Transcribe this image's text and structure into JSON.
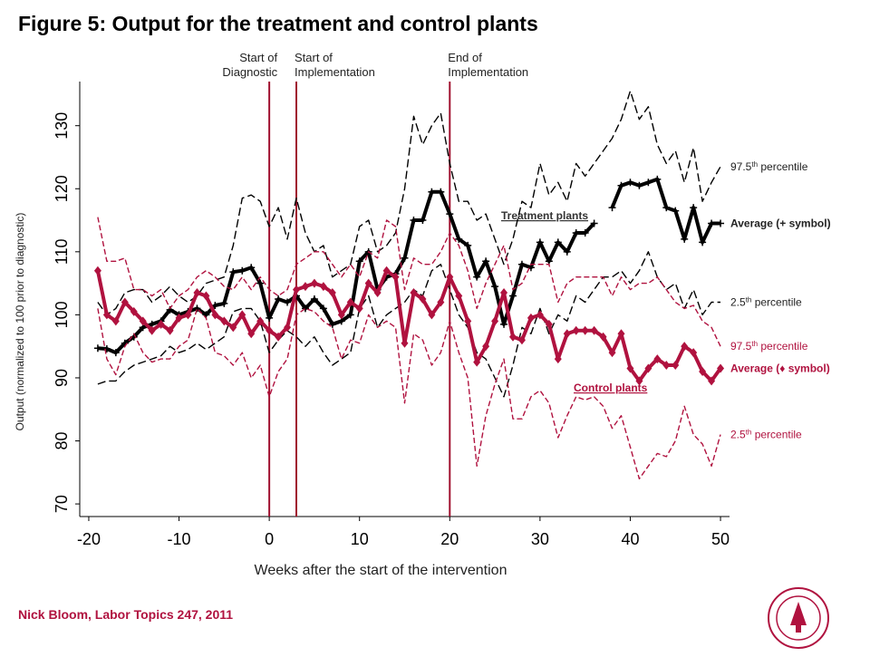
{
  "chart_data": {
    "type": "line",
    "title": "Figure 5: Output for the treatment and control plants",
    "footer": "Nick Bloom, Labor Topics 247, 2011",
    "x_label": "Weeks after the start of the intervention",
    "y_label": "Output (normalized to 100 prior to diagnostic)",
    "xlim": [
      -21,
      51
    ],
    "ylim": [
      68,
      137
    ],
    "xticks": [
      -20,
      -10,
      0,
      10,
      20,
      30,
      40,
      50
    ],
    "yticks": [
      70,
      80,
      90,
      100,
      110,
      120,
      130
    ],
    "x": [
      -19,
      -18,
      -17,
      -16,
      -15,
      -14,
      -13,
      -12,
      -11,
      -10,
      -9,
      -8,
      -7,
      -6,
      -5,
      -4,
      -3,
      -2,
      -1,
      0,
      1,
      2,
      3,
      4,
      5,
      6,
      7,
      8,
      9,
      10,
      11,
      12,
      13,
      14,
      15,
      16,
      17,
      18,
      19,
      20,
      21,
      22,
      23,
      24,
      25,
      26,
      27,
      28,
      29,
      30,
      31,
      32,
      33,
      34,
      35,
      36,
      37,
      38,
      39,
      40,
      41,
      42,
      43,
      44,
      45,
      46,
      47,
      48,
      49,
      50
    ],
    "vertical_lines": [
      {
        "x": 0,
        "label": [
          "Start of",
          "Diagnostic"
        ]
      },
      {
        "x": 3,
        "label": [
          "Start of",
          "Implementation"
        ]
      },
      {
        "x": 20,
        "label": [
          "End of",
          "Implementation"
        ]
      }
    ],
    "annotations": [
      "Treatment plants",
      "Control plants"
    ],
    "series": [
      {
        "name": "97.5th percentile",
        "group": "treatment",
        "color": "#000000",
        "style": "dashed",
        "values": [
          102,
          100,
          101,
          103.5,
          104,
          104,
          102,
          103,
          104.5,
          103,
          102,
          103,
          105,
          105.5,
          106,
          111,
          118.5,
          119,
          118,
          114,
          117,
          112,
          118.5,
          113,
          110,
          111,
          106,
          107,
          108,
          114,
          115,
          110,
          111,
          113,
          120,
          131.5,
          127,
          130,
          132,
          124,
          118,
          118,
          115,
          116,
          112,
          108,
          112,
          118,
          117,
          124,
          119,
          121,
          118,
          124,
          122,
          124,
          126,
          128,
          131,
          135.5,
          131,
          133,
          127,
          124,
          126,
          121,
          126.5,
          118,
          121,
          123.5
        ]
      },
      {
        "name": "Average (+ symbol)",
        "group": "treatment",
        "color": "#000000",
        "style": "average",
        "marker": "plus",
        "values": [
          94.7,
          94.6,
          94,
          95.5,
          96.5,
          98,
          98.5,
          99,
          100.8,
          100,
          100.5,
          101,
          100,
          101.5,
          101.8,
          106.8,
          107,
          107.5,
          105,
          99.5,
          102.5,
          102,
          103,
          101,
          102.5,
          101,
          98.5,
          99,
          100,
          108.5,
          110,
          104,
          106,
          106.5,
          109,
          115,
          115,
          119.5,
          119.5,
          116,
          112,
          111,
          106,
          108.5,
          104.5,
          98.5,
          103,
          108,
          107.5,
          111.5,
          108.5,
          111.5,
          110,
          113,
          113,
          114.5,
          null,
          117,
          120.5,
          121,
          120.5,
          121,
          121.5,
          117,
          116.5,
          112,
          117,
          111.5,
          114.5,
          114.5
        ]
      },
      {
        "name": "2.5th percentile",
        "group": "treatment",
        "color": "#000000",
        "style": "dashed",
        "values": [
          89,
          89.5,
          89.5,
          91,
          92,
          92.5,
          93,
          93.5,
          95,
          94,
          94.5,
          95.5,
          94.5,
          95.5,
          96.5,
          100.5,
          101,
          101,
          99,
          94,
          96,
          97.5,
          96.5,
          95,
          96.5,
          94,
          92,
          93,
          94,
          101,
          103,
          98,
          100,
          101,
          102,
          104,
          103,
          107,
          108,
          104,
          100,
          98,
          94,
          93,
          90,
          87,
          92,
          98,
          97,
          101,
          97,
          100,
          99,
          103,
          102,
          104,
          106,
          106,
          107,
          105,
          107,
          110,
          106,
          104,
          105,
          101,
          104,
          100,
          102,
          102
        ]
      },
      {
        "name": "97.5th percentile",
        "group": "control",
        "color": "#b0123f",
        "style": "dashed",
        "values": [
          115.5,
          108.5,
          108.5,
          109,
          104,
          104,
          103,
          104,
          101,
          103,
          104,
          106,
          107,
          106,
          104.5,
          104,
          106,
          104,
          106,
          104,
          103,
          104,
          108,
          109,
          110,
          110,
          108,
          106,
          108,
          106,
          110,
          109,
          115,
          114,
          104,
          109,
          108,
          108,
          110,
          113,
          111,
          107,
          101,
          105,
          108,
          111,
          104,
          105,
          108,
          108,
          108,
          102,
          105,
          106,
          106,
          106,
          106,
          103,
          106,
          104,
          105,
          105,
          106,
          104,
          102,
          101,
          101.5,
          99,
          98,
          95
        ]
      },
      {
        "name": "Average (♦ symbol)",
        "group": "control",
        "color": "#b0123f",
        "style": "average",
        "marker": "diamond",
        "values": [
          107,
          100,
          99,
          102,
          100.5,
          99,
          97.5,
          98.5,
          97.5,
          99.5,
          100,
          103.5,
          103,
          100,
          99,
          98,
          100,
          97,
          99,
          97.5,
          96.5,
          98,
          104,
          104.5,
          105,
          104.5,
          103.5,
          100,
          102,
          101,
          105,
          103.5,
          107,
          106,
          95.5,
          103.5,
          102.5,
          100,
          102,
          106,
          103,
          99,
          92.5,
          95,
          99,
          103.5,
          96.5,
          96,
          99.5,
          100,
          98.5,
          93,
          97,
          97.5,
          97.5,
          97.5,
          96.5,
          94,
          97,
          91.5,
          89.5,
          91.5,
          93,
          92,
          92,
          95,
          94,
          91,
          89.5,
          91.5
        ]
      },
      {
        "name": "2.5th percentile",
        "group": "control",
        "color": "#b0123f",
        "style": "dashed",
        "values": [
          101,
          93,
          90.5,
          95,
          97,
          94,
          92.5,
          93,
          93,
          95,
          96,
          101,
          99.5,
          94,
          93.5,
          92,
          94,
          90,
          92,
          87,
          91,
          93,
          100,
          101,
          100.5,
          99,
          98,
          93,
          96,
          95.5,
          100,
          98,
          99,
          98,
          86,
          97,
          96,
          92,
          94,
          99,
          94,
          90,
          76,
          84,
          89,
          93,
          83.5,
          83.5,
          87,
          88,
          86,
          80.5,
          84,
          87,
          86.5,
          87,
          85.5,
          82,
          84,
          79,
          74,
          76,
          78,
          77.5,
          80,
          85.5,
          81,
          79.5,
          76,
          81
        ]
      }
    ]
  }
}
